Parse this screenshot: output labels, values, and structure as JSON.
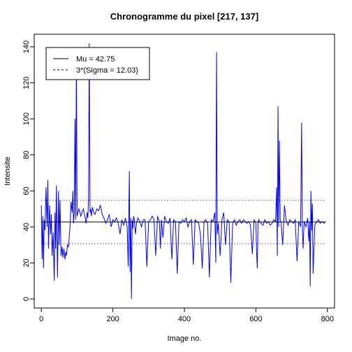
{
  "chart_data": {
    "type": "line",
    "title": "Chronogramme du pixel [217, 137]",
    "xlabel": "Image no.",
    "ylabel": "Intensite",
    "xlim": [
      -20,
      820
    ],
    "ylim": [
      -5,
      147
    ],
    "x_ticks": [
      0,
      200,
      400,
      600,
      800
    ],
    "y_ticks": [
      0,
      20,
      40,
      60,
      80,
      100,
      120,
      140
    ],
    "grid": false,
    "legend_position": "top-left",
    "mu": 42.75,
    "upper_band": 54.78,
    "lower_band": 30.72,
    "legend": {
      "mu_label": "Mu = 42.75",
      "sigma_label": "3*(Sigma = 12.03)"
    },
    "series": [
      {
        "color": "#0000ff",
        "x": [
          0,
          2,
          4,
          6,
          8,
          10,
          13,
          16,
          18,
          20,
          23,
          26,
          28,
          30,
          33,
          36,
          38,
          40,
          42,
          45,
          48,
          50,
          52,
          55,
          58,
          60,
          63,
          66,
          68,
          70,
          73,
          76,
          78,
          80,
          83,
          86,
          88,
          90,
          92,
          94,
          96,
          98,
          100,
          102,
          105,
          108,
          110,
          112,
          115,
          118,
          120,
          122,
          125,
          128,
          130,
          132,
          134,
          136,
          138,
          140,
          143,
          146,
          150,
          155,
          160,
          165,
          170,
          175,
          180,
          185,
          190,
          195,
          200,
          205,
          210,
          215,
          220,
          225,
          230,
          235,
          240,
          243,
          246,
          248,
          250,
          252,
          254,
          256,
          258,
          260,
          263,
          266,
          270,
          275,
          280,
          285,
          290,
          295,
          300,
          305,
          310,
          315,
          320,
          325,
          330,
          333,
          336,
          340,
          345,
          350,
          355,
          360,
          365,
          370,
          375,
          380,
          385,
          390,
          395,
          400,
          405,
          410,
          415,
          420,
          425,
          430,
          435,
          440,
          445,
          450,
          455,
          460,
          465,
          470,
          475,
          480,
          485,
          488,
          490,
          492,
          495,
          500,
          505,
          510,
          515,
          520,
          525,
          530,
          535,
          540,
          545,
          550,
          555,
          560,
          565,
          570,
          575,
          580,
          585,
          590,
          595,
          598,
          600,
          602,
          604,
          606,
          608,
          610,
          615,
          620,
          625,
          630,
          635,
          640,
          645,
          650,
          655,
          658,
          660,
          662,
          664,
          666,
          668,
          670,
          675,
          680,
          685,
          690,
          695,
          700,
          705,
          710,
          715,
          720,
          725,
          728,
          730,
          732,
          735,
          740,
          745,
          748,
          750,
          752,
          754,
          756,
          758,
          760,
          765,
          770,
          775,
          780,
          785,
          790,
          795
        ],
        "y": [
          52,
          22,
          46,
          17,
          44,
          38,
          62,
          40,
          66,
          28,
          52,
          36,
          47,
          24,
          37,
          10,
          48,
          28,
          63,
          12,
          60,
          30,
          55,
          24,
          29,
          23,
          28,
          22,
          26,
          24,
          30,
          29,
          35,
          40,
          54,
          48,
          60,
          42,
          48,
          100,
          44,
          137,
          46,
          48,
          50,
          48,
          46,
          47,
          49,
          50,
          47,
          46,
          42,
          48,
          45,
          57,
          142,
          48,
          50,
          46,
          51,
          48,
          47,
          50,
          49,
          52,
          47,
          45,
          42,
          44,
          47,
          40,
          44,
          43,
          45,
          42,
          36,
          44,
          41,
          45,
          40,
          18,
          71,
          15,
          45,
          0,
          44,
          39,
          46,
          44,
          36,
          42,
          45,
          43,
          40,
          44,
          44,
          18,
          43,
          44,
          46,
          44,
          24,
          46,
          43,
          28,
          44,
          34,
          46,
          43,
          42,
          45,
          22,
          44,
          43,
          14,
          43,
          42,
          44,
          43,
          45,
          40,
          43,
          44,
          19,
          44,
          43,
          42,
          36,
          17,
          43,
          44,
          42,
          12,
          44,
          43,
          48,
          20,
          137,
          36,
          42,
          24,
          44,
          48,
          30,
          44,
          43,
          9,
          42,
          44,
          41,
          43,
          44,
          42,
          44,
          43,
          42,
          43,
          41,
          25,
          44,
          43,
          42,
          26,
          17,
          42,
          44,
          43,
          42,
          41,
          44,
          42,
          43,
          41,
          42,
          44,
          43,
          62,
          24,
          107,
          40,
          88,
          44,
          43,
          30,
          52,
          43,
          41,
          44,
          43,
          42,
          44,
          21,
          43,
          40,
          98,
          40,
          28,
          43,
          40,
          45,
          32,
          43,
          7,
          60,
          38,
          53,
          14,
          41,
          43,
          44,
          42,
          43,
          42,
          43
        ]
      }
    ]
  }
}
